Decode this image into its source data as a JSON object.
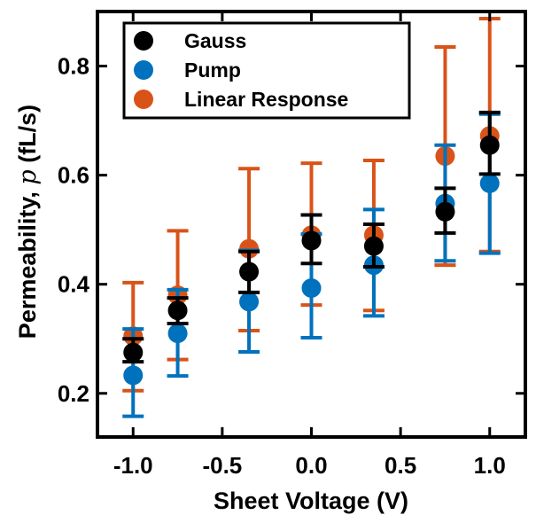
{
  "chart_data": {
    "type": "scatter",
    "xlabel": "Sheet Voltage (V)",
    "ylabel_prefix": "Permeability, ",
    "ylabel_symbol": "p",
    "ylabel_suffix": " (fL/s)",
    "xlim": [
      -1.2,
      1.2
    ],
    "ylim": [
      0.12,
      0.9
    ],
    "xticks": [
      -1.0,
      -0.5,
      0.0,
      0.5,
      1.0
    ],
    "xtick_labels": [
      "-1.0",
      "-0.5",
      "0.0",
      "0.5",
      "1.0"
    ],
    "yticks": [
      0.2,
      0.4,
      0.6,
      0.8
    ],
    "ytick_labels": [
      "0.2",
      "0.4",
      "0.6",
      "0.8"
    ],
    "grid": false,
    "legend_position": "top-left",
    "series": [
      {
        "name": "Linear Response",
        "color": "#D95319",
        "x": [
          -1.0,
          -0.75,
          -0.35,
          0.0,
          0.35,
          0.75,
          1.0
        ],
        "y": [
          0.305,
          0.38,
          0.465,
          0.49,
          0.49,
          0.635,
          0.672
        ],
        "err_low": [
          0.205,
          0.262,
          0.315,
          0.362,
          0.352,
          0.435,
          0.46
        ],
        "err_high": [
          0.403,
          0.498,
          0.612,
          0.622,
          0.627,
          0.835,
          0.887
        ]
      },
      {
        "name": "Pump",
        "color": "#0072BD",
        "x": [
          -1.0,
          -0.75,
          -0.35,
          0.0,
          0.35,
          0.75,
          1.0
        ],
        "y": [
          0.233,
          0.31,
          0.368,
          0.393,
          0.435,
          0.548,
          0.585
        ],
        "err_low": [
          0.158,
          0.232,
          0.276,
          0.302,
          0.342,
          0.443,
          0.457
        ],
        "err_high": [
          0.318,
          0.39,
          0.462,
          0.492,
          0.537,
          0.655,
          0.712
        ]
      },
      {
        "name": "Gauss",
        "color": "#000000",
        "x": [
          -1.0,
          -0.75,
          -0.35,
          0.0,
          0.35,
          0.75,
          1.0
        ],
        "y": [
          0.275,
          0.352,
          0.423,
          0.48,
          0.47,
          0.533,
          0.655
        ],
        "err_low": [
          0.258,
          0.328,
          0.385,
          0.438,
          0.432,
          0.494,
          0.602
        ],
        "err_high": [
          0.3,
          0.375,
          0.46,
          0.527,
          0.51,
          0.576,
          0.715
        ]
      }
    ],
    "legend_order": [
      "Gauss",
      "Pump",
      "Linear Response"
    ]
  }
}
